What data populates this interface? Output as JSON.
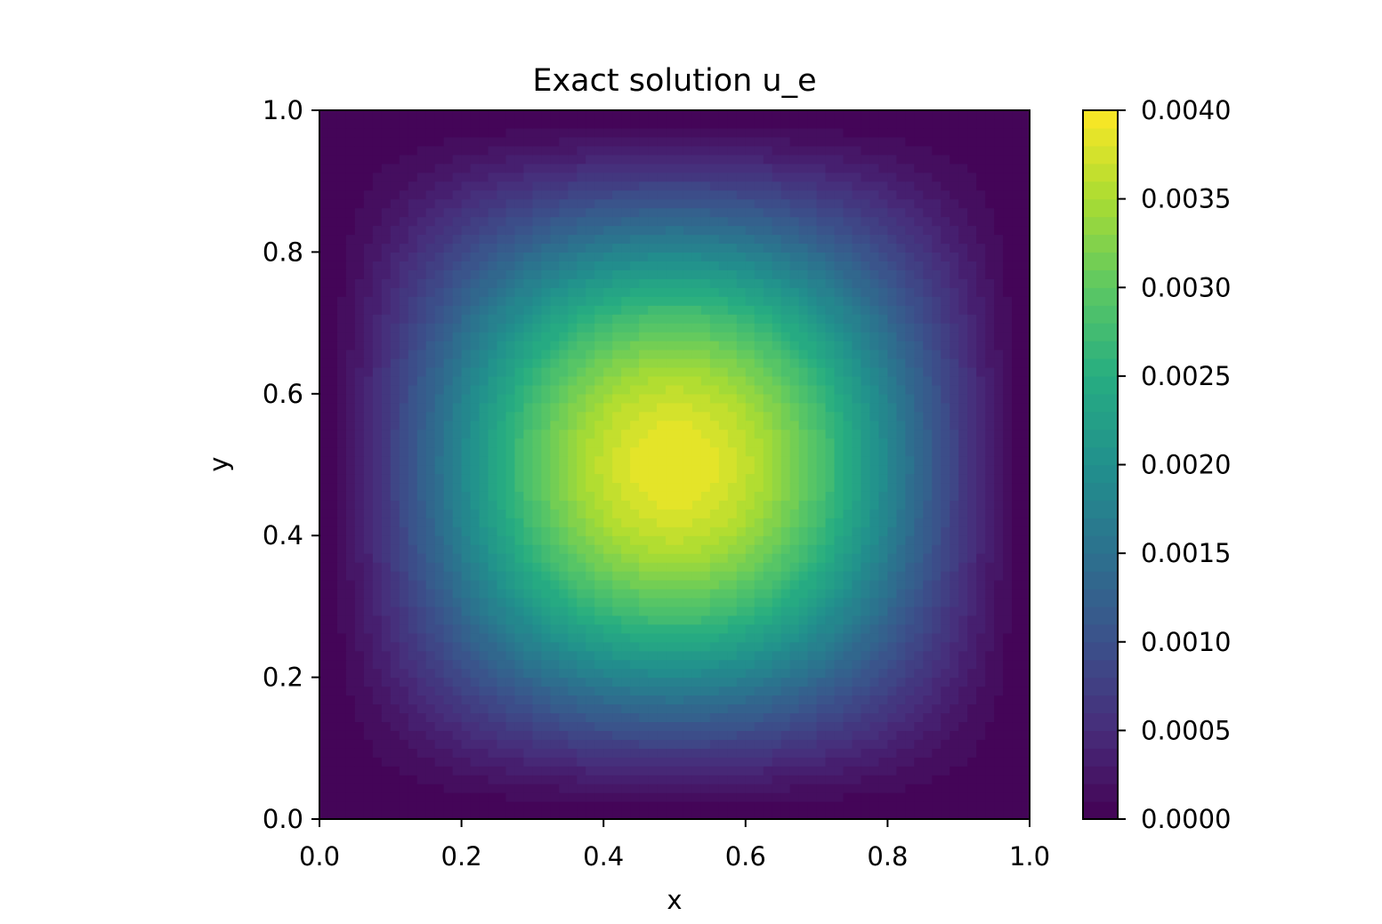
{
  "chart_data": {
    "type": "heatmap",
    "title": "Exact solution  u_e",
    "xlabel": "x",
    "ylabel": "y",
    "xlim": [
      0.0,
      1.0
    ],
    "ylim": [
      0.0,
      1.0
    ],
    "x_ticks": [
      "0.0",
      "0.2",
      "0.4",
      "0.6",
      "0.8",
      "1.0"
    ],
    "y_ticks": [
      "0.0",
      "0.2",
      "0.4",
      "0.6",
      "0.8",
      "1.0"
    ],
    "colorbar": {
      "colormap": "viridis",
      "range": [
        0.0,
        0.004
      ],
      "ticks": [
        "0.0000",
        "0.0005",
        "0.0010",
        "0.0015",
        "0.0020",
        "0.0025",
        "0.0030",
        "0.0035",
        "0.0040"
      ],
      "levels": 40
    },
    "field": {
      "peak_value": 0.0039,
      "peak_location": [
        0.5,
        0.5
      ],
      "boundary_value": 0.0
    },
    "grid": false
  }
}
